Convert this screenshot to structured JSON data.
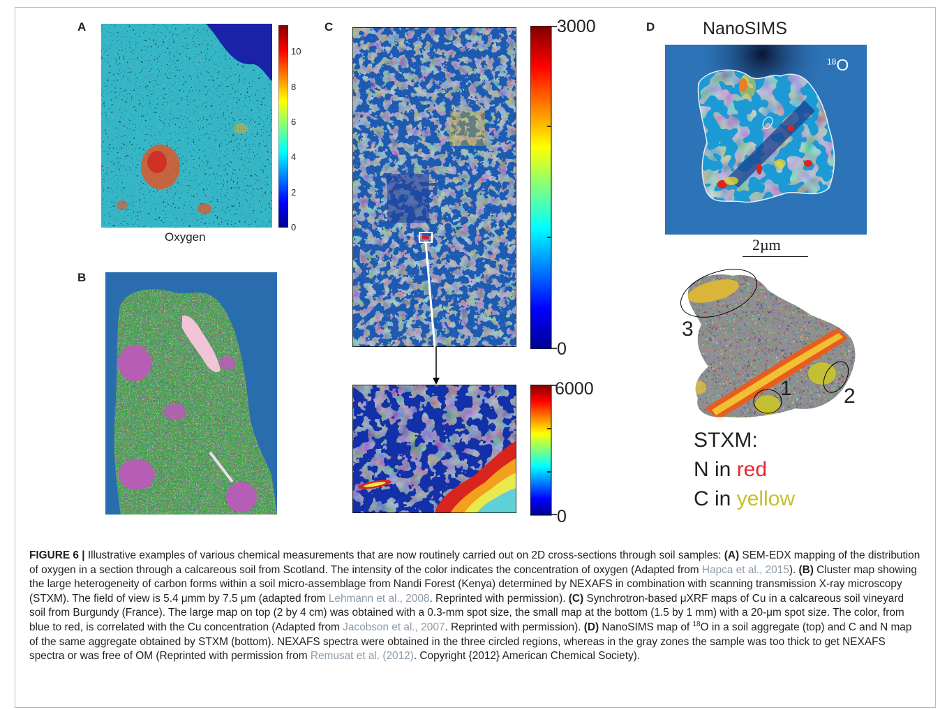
{
  "panels": {
    "a": {
      "label": "A",
      "xlabel": "Oxygen",
      "colorbar_ticks": [
        "10",
        "8",
        "6",
        "4",
        "2",
        "0"
      ]
    },
    "b": {
      "label": "B"
    },
    "c": {
      "label": "C",
      "large_map_max": "3000",
      "large_map_min": "0",
      "small_map_max": "6000",
      "small_map_min": "0"
    },
    "d": {
      "label": "D",
      "nanosims_title": "NanoSIMS",
      "isotope_mass": "18",
      "isotope_element": "O",
      "scale_bar": "2µm",
      "region_labels": [
        "3",
        "1",
        "2"
      ],
      "stxm_title": "STXM:",
      "n_line_prefix": "N in ",
      "n_line_color_word": "red",
      "c_line_prefix": "C in ",
      "c_line_color_word": "yellow"
    }
  },
  "colors": {
    "n_red": "#e8262b",
    "c_yellow": "#c7c02a"
  },
  "caption": {
    "figure_label": "FIGURE 6 |",
    "t1": " Illustrative examples of various chemical measurements that are now routinely carried out on 2D cross-sections through soil samples: ",
    "la": "(A)",
    "t2": " SEM-EDX mapping of the distribution of oxygen in a section through a calcareous soil from Scotland. The intensity of the color indicates the concentration of oxygen (Adapted from ",
    "ref1": "Hapca et al., 2015",
    "t3": "). ",
    "lb": "(B)",
    "t4": " Cluster map showing the large heterogeneity of carbon forms within a soil micro-assemblage from Nandi Forest (Kenya) determined by NEXAFS in combination with scanning transmission X-ray microscopy (STXM). The field of view is 5.4 μmm by 7.5 μm (adapted from ",
    "ref2": "Lehmann et al., 2008",
    "t5": ". Reprinted with permission). ",
    "lc": "(C)",
    "t6": " Synchrotron-based μXRF maps of Cu in a calcareous soil vineyard soil from Burgundy (France). The large map on top (2 by 4 cm) was obtained with a 0.3-mm spot size, the small map at the bottom (1.5 by 1 mm) with a 20-μm spot size. The color, from blue to red, is correlated with the Cu concentration (Adapted from ",
    "ref3": "Jacobson et al., 2007",
    "t7": ". Reprinted with permission). ",
    "ld": "(D)",
    "t8a": " NanoSIMS map of ",
    "sup18": "18",
    "t8b": "O in a soil aggregate (top) and C and N map of the same aggregate obtained by STXM (bottom). NEXAFS spectra were obtained in the three circled regions, whereas in the gray zones the sample was too thick to get NEXAFS spectra or was free of OM (Reprinted with permission from ",
    "ref4": "Remusat et al. (2012)",
    "t9": ". Copyright {2012} American Chemical Society)."
  }
}
